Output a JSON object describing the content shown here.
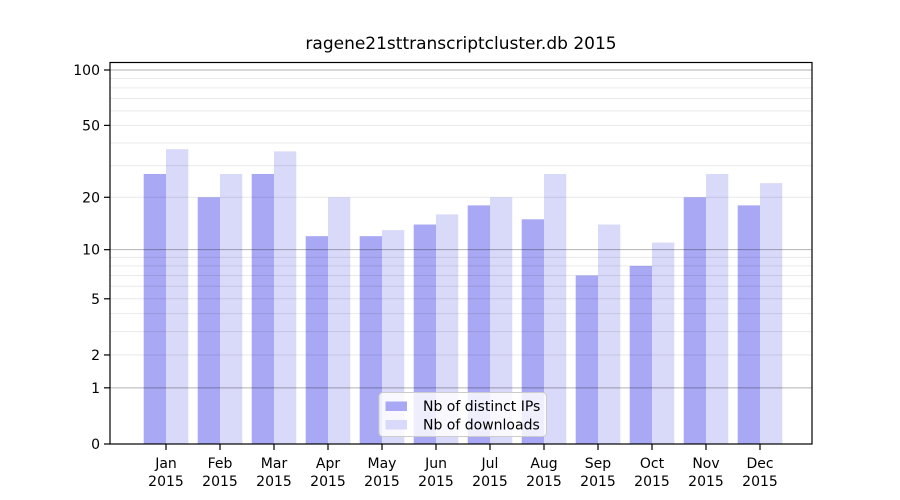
{
  "figure": {
    "title": "ragene21sttranscriptcluster.db 2015",
    "background": "#ffffff"
  },
  "chart_data": {
    "type": "bar",
    "title": "ragene21sttranscriptcluster.db 2015",
    "categories": [
      "Jan 2015",
      "Feb 2015",
      "Mar 2015",
      "Apr 2015",
      "May 2015",
      "Jun 2015",
      "Jul 2015",
      "Aug 2015",
      "Sep 2015",
      "Oct 2015",
      "Nov 2015",
      "Dec 2015"
    ],
    "series": [
      {
        "name": "Nb of distinct IPs",
        "color": "#a8a8f4",
        "values": [
          27,
          20,
          27,
          12,
          12,
          14,
          18,
          15,
          7,
          8,
          20,
          18
        ]
      },
      {
        "name": "Nb of downloads",
        "color": "#d9d9f9",
        "values": [
          37,
          27,
          36,
          20,
          13,
          16,
          20,
          27,
          14,
          11,
          27,
          24
        ]
      }
    ],
    "xlabel": "",
    "ylabel": "",
    "scale": "log1p",
    "ylim": [
      0,
      110
    ],
    "yticks": [
      0,
      1,
      2,
      5,
      10,
      20,
      50,
      100
    ],
    "minor_gridlines": [
      2,
      3,
      4,
      5,
      6,
      7,
      8,
      9,
      20,
      30,
      40,
      50,
      60,
      70,
      80,
      90
    ],
    "major_gridlines": [
      1,
      10,
      100
    ],
    "grid": true,
    "legend": {
      "position": "lower-center",
      "entries": [
        "Nb of distinct IPs",
        "Nb of downloads"
      ]
    }
  },
  "colors": {
    "bar_distinct_ips": "#a8a8f4",
    "bar_downloads": "#d9d9f9",
    "grid_minor": "rgba(0,0,0,0.085)",
    "grid_major": "rgba(0,0,0,0.30)",
    "spine": "#000000",
    "text": "#000000",
    "legend_border": "#cccccc",
    "legend_background": "rgba(255,255,255,0.8)"
  }
}
